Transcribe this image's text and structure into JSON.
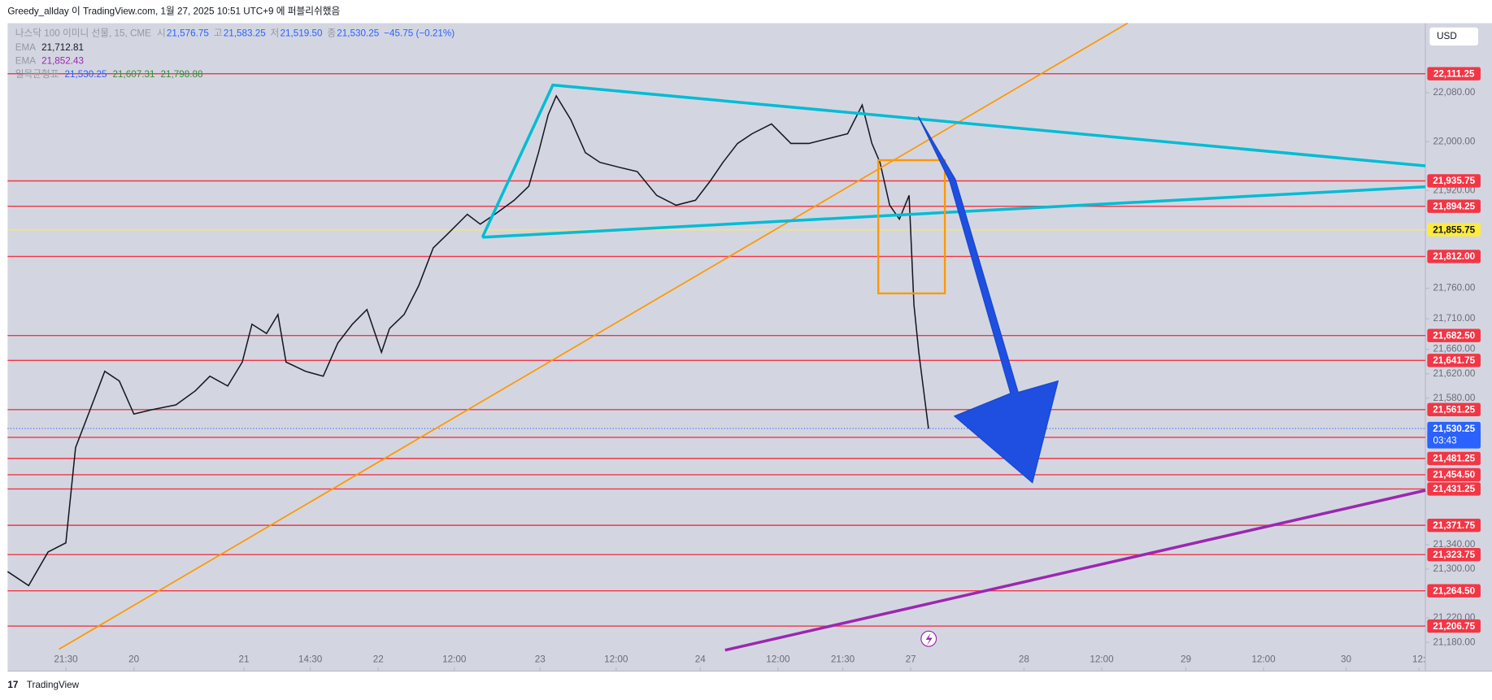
{
  "header": {
    "title": "Greedy_allday 이 TradingView.com, 1월 27, 2025 10:51 UTC+9 에 퍼블리쉬했음"
  },
  "chart_data": {
    "type": "line",
    "symbol": "나스닥 100 이미니 선물, 15, CME",
    "ohlc": [
      {
        "label": "시",
        "value": "21,576.75"
      },
      {
        "label": "고",
        "value": "21,583.25"
      },
      {
        "label": "저",
        "value": "21,519.50"
      },
      {
        "label": "종",
        "value": "21,530.25"
      }
    ],
    "change": "−45.75 (−0.21%)",
    "indicators": [
      {
        "name": "EMA",
        "values": [
          "21,712.81"
        ],
        "colors": [
          "#131722"
        ]
      },
      {
        "name": "EMA",
        "values": [
          "21,852.43"
        ],
        "colors": [
          "#9c27b0"
        ]
      },
      {
        "name": "일목균형표",
        "values": [
          "21,530.25",
          "21,607.31",
          "21,798.88"
        ],
        "colors": [
          "#2962ff",
          "#388e3c",
          "#388e3c"
        ]
      }
    ],
    "currency": "USD",
    "color": "#131722",
    "grid": false,
    "xlim": [
      0,
      876
    ],
    "xticks": [
      {
        "value": 36,
        "label": "21:30"
      },
      {
        "value": 78,
        "label": "20"
      },
      {
        "value": 146,
        "label": "21"
      },
      {
        "value": 187,
        "label": "14:30"
      },
      {
        "value": 229,
        "label": "22"
      },
      {
        "value": 276,
        "label": "12:00"
      },
      {
        "value": 329,
        "label": "23"
      },
      {
        "value": 376,
        "label": "12:00"
      },
      {
        "value": 428,
        "label": "24"
      },
      {
        "value": 476,
        "label": "12:00"
      },
      {
        "value": 516,
        "label": "21:30"
      },
      {
        "value": 558,
        "label": "27"
      },
      {
        "value": 628,
        "label": "28"
      },
      {
        "value": 676,
        "label": "12:00"
      },
      {
        "value": 728,
        "label": "29"
      },
      {
        "value": 776,
        "label": "12:00"
      },
      {
        "value": 827,
        "label": "30"
      },
      {
        "value": 872,
        "label": "12:"
      }
    ],
    "ylim": [
      21133,
      22194
    ],
    "yticks": [
      {
        "value": 22080,
        "label": "22,080.00"
      },
      {
        "value": 22000,
        "label": "22,000.00"
      },
      {
        "value": 21920,
        "label": "21,920.00"
      },
      {
        "value": 21760,
        "label": "21,760.00"
      },
      {
        "value": 21710,
        "label": "21,710.00"
      },
      {
        "value": 21660,
        "label": "21,660.00"
      },
      {
        "value": 21620,
        "label": "21,620.00"
      },
      {
        "value": 21580,
        "label": "21,580.00"
      },
      {
        "value": 21340,
        "label": "21,340.00"
      },
      {
        "value": 21300,
        "label": "21,300.00"
      },
      {
        "value": 21220,
        "label": "21,220.00"
      },
      {
        "value": 21180,
        "label": "21,180.00"
      }
    ],
    "x": [
      0,
      13,
      25,
      36,
      42,
      51,
      60,
      69,
      78,
      89,
      104,
      116,
      125,
      136,
      145,
      151,
      160,
      167,
      172,
      184,
      195,
      204,
      213,
      222,
      231,
      236,
      245,
      254,
      263,
      272,
      284,
      292,
      301,
      313,
      322,
      328,
      334,
      339,
      348,
      357,
      366,
      378,
      389,
      401,
      413,
      425,
      434,
      442,
      451,
      460,
      472,
      484,
      495,
      507,
      519,
      528,
      534,
      539,
      545,
      551,
      557,
      560,
      563,
      569
    ],
    "values": [
      21296,
      21273,
      21328,
      21343,
      21499,
      21561,
      21624,
      21608,
      21554,
      21561,
      21569,
      21592,
      21616,
      21600,
      21639,
      21701,
      21686,
      21717,
      21639,
      21624,
      21616,
      21670,
      21701,
      21725,
      21655,
      21694,
      21717,
      21764,
      21826,
      21849,
      21881,
      21865,
      21881,
      21904,
      21927,
      21982,
      22044,
      22075,
      22036,
      21982,
      21966,
      21958,
      21951,
      21912,
      21896,
      21904,
      21935,
      21966,
      21997,
      22013,
      22029,
      21997,
      21997,
      22005,
      22013,
      22060,
      21997,
      21966,
      21896,
      21873,
      21912,
      21733,
      21655,
      21530
    ],
    "levels": [
      {
        "value": 22111.25,
        "label": "22,111.25",
        "color": "#f23645"
      },
      {
        "value": 21935.75,
        "label": "21,935.75",
        "color": "#f23645"
      },
      {
        "value": 21894.25,
        "label": "21,894.25",
        "color": "#f23645"
      },
      {
        "value": 21855.75,
        "label": "21,855.75",
        "color": "#ffeb3b"
      },
      {
        "value": 21812.0,
        "label": "21,812.00",
        "color": "#f23645"
      },
      {
        "value": 21682.5,
        "label": "21,682.50",
        "color": "#f23645"
      },
      {
        "value": 21641.75,
        "label": "21,641.75",
        "color": "#f23645"
      },
      {
        "value": 21561.25,
        "label": "21,561.25",
        "color": "#f23645"
      },
      {
        "value": 21515.75,
        "label": "21,515.75",
        "color": "#f23645"
      },
      {
        "value": 21481.25,
        "label": "21,481.25",
        "color": "#f23645"
      },
      {
        "value": 21454.5,
        "label": "21,454.50",
        "color": "#f23645"
      },
      {
        "value": 21431.25,
        "label": "21,431.25",
        "color": "#f23645"
      },
      {
        "value": 21371.75,
        "label": "21,371.75",
        "color": "#f23645"
      },
      {
        "value": 21323.75,
        "label": "21,323.75",
        "color": "#f23645"
      },
      {
        "value": 21264.5,
        "label": "21,264.50",
        "color": "#f23645"
      },
      {
        "value": 21206.75,
        "label": "21,206.75",
        "color": "#f23645"
      }
    ],
    "last": {
      "value": 21530.25,
      "label": "21,530.25",
      "countdown": "03:43",
      "color": "#2962ff"
    }
  },
  "footer": {
    "brand": "TradingView"
  }
}
